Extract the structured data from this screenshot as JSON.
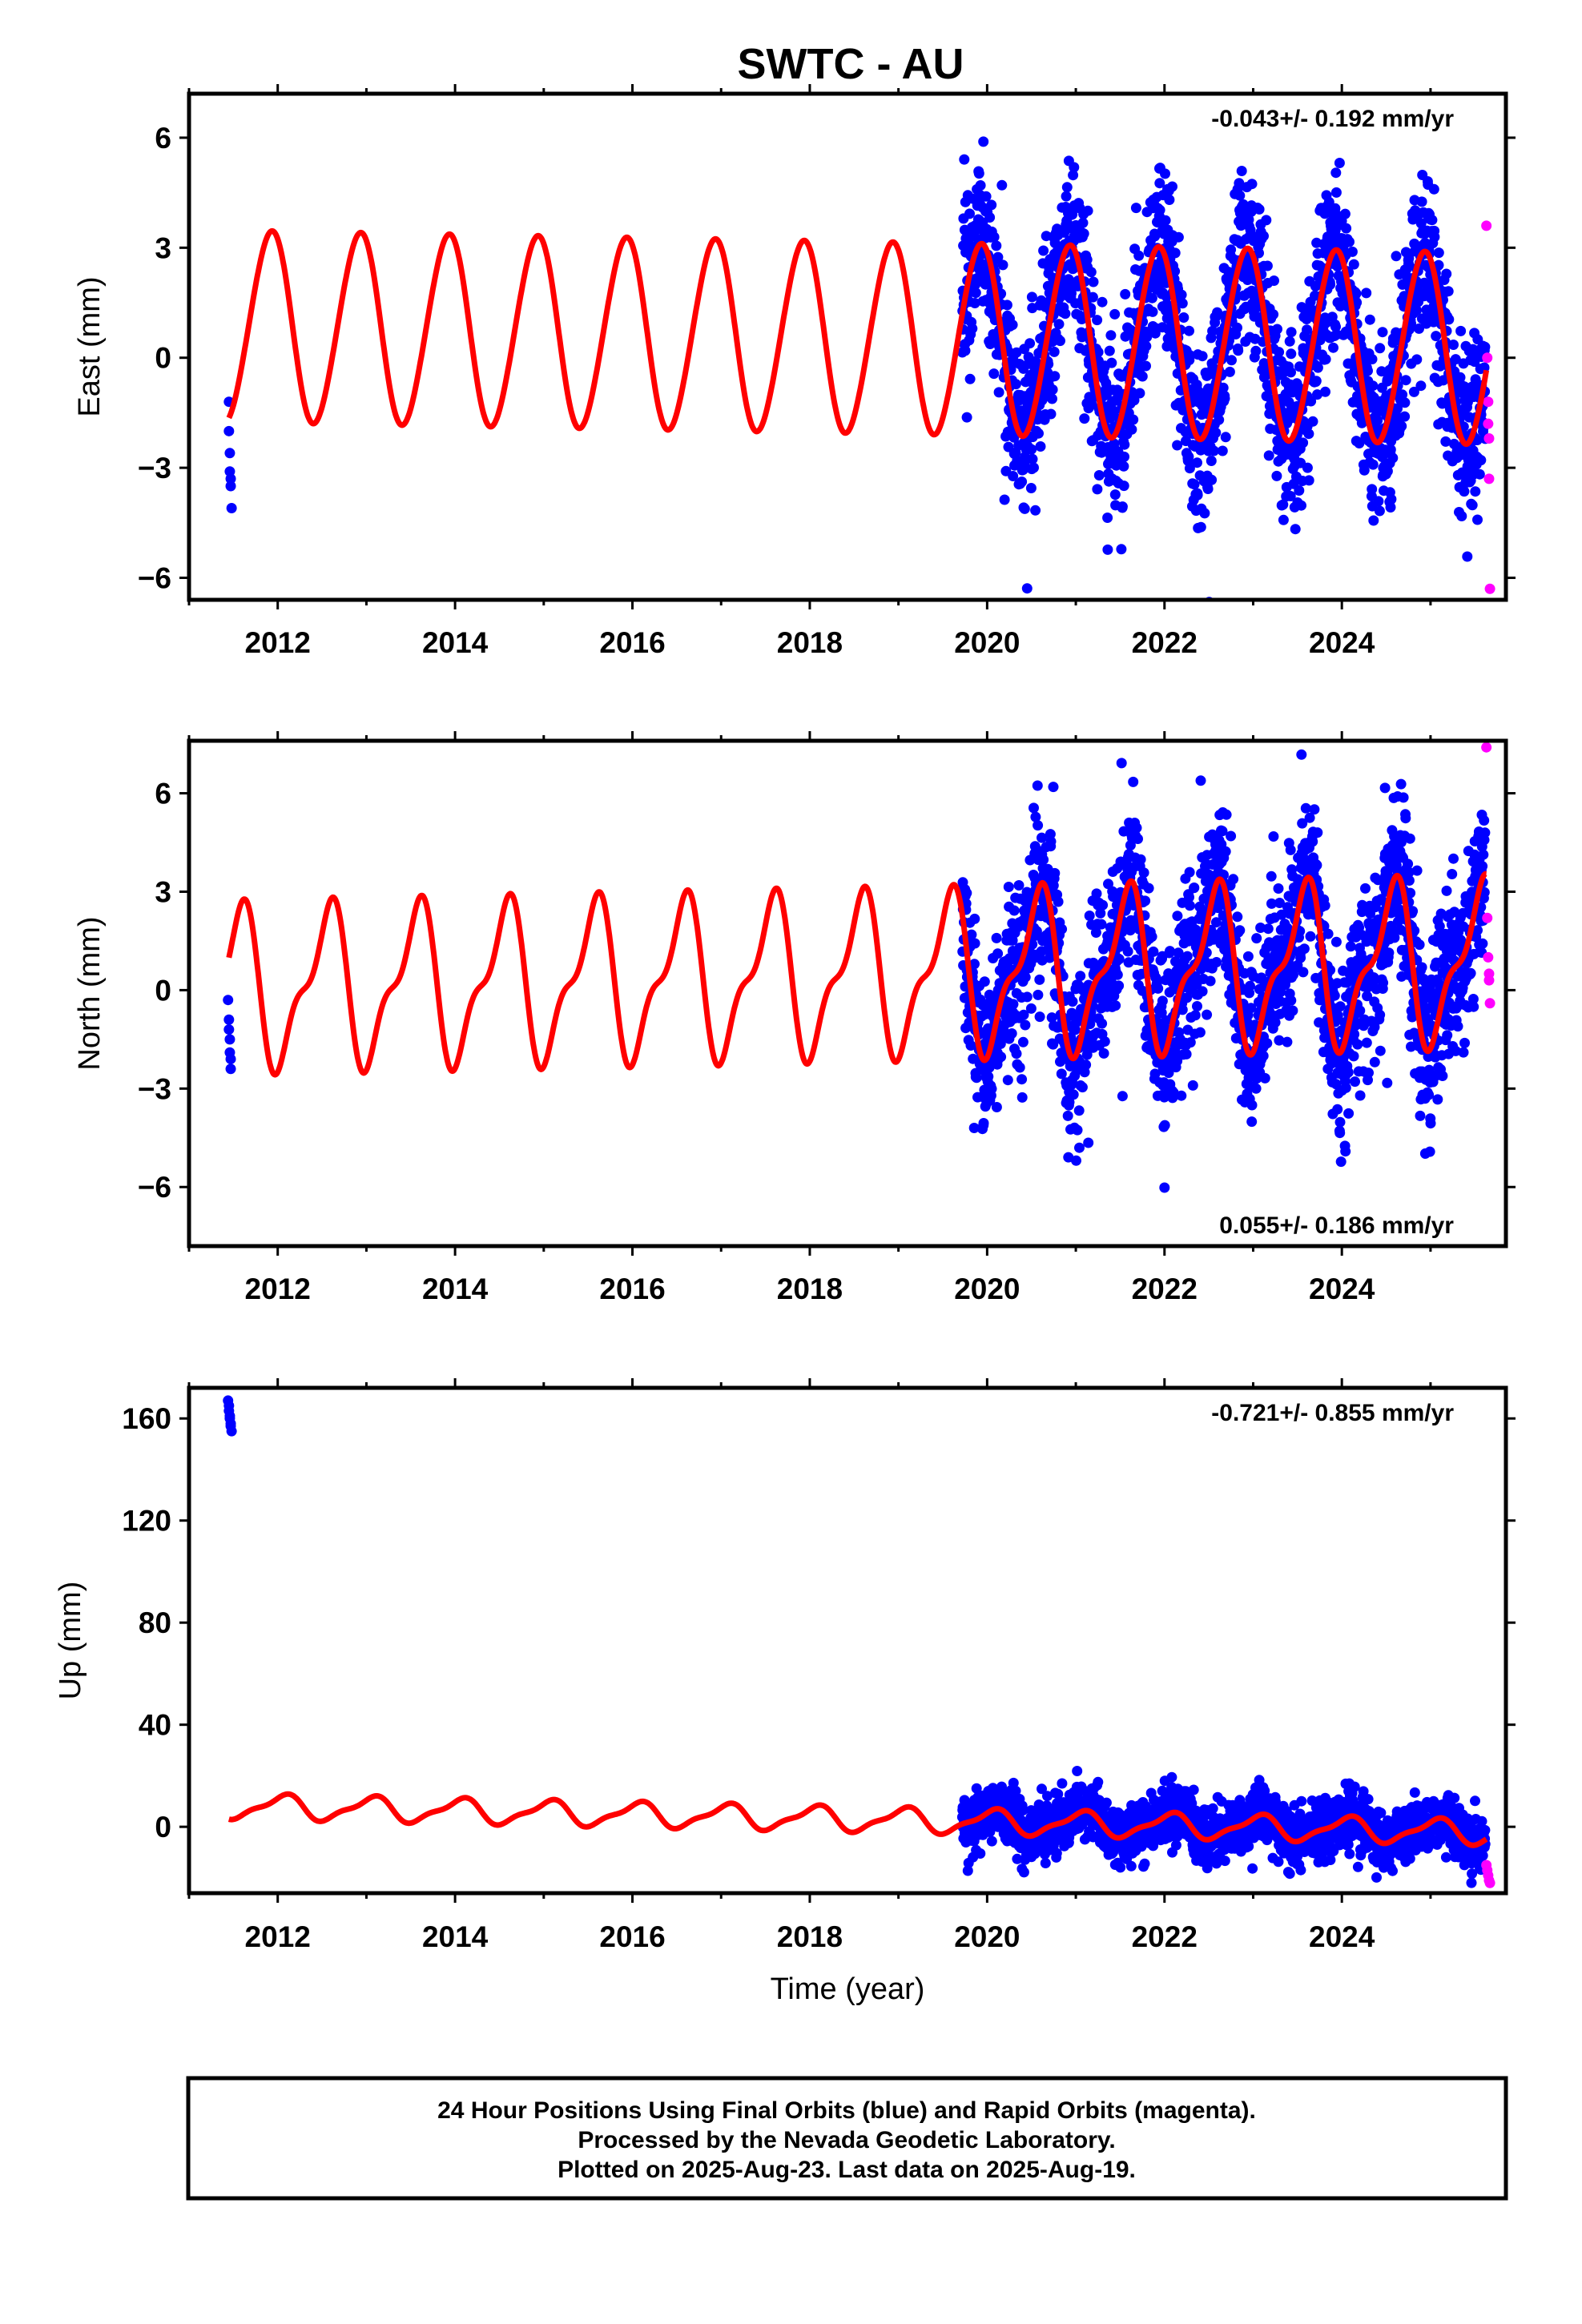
{
  "title": "SWTC - AU",
  "colors": {
    "final": "#0000ff",
    "rapid": "#ff00ff",
    "model": "#ff0000",
    "frame": "#000000"
  },
  "footer": {
    "line1": "24 Hour Positions Using Final Orbits (blue) and Rapid Orbits (magenta).",
    "line2": "Processed by the Nevada Geodetic Laboratory.",
    "line3": "Plotted on 2025-Aug-23. Last data on 2025-Aug-19."
  },
  "chart_data": [
    {
      "type": "scatter",
      "ylabel": "East (mm)",
      "xlabel": "",
      "rate_text": "-0.043+/- 0.192 mm/yr",
      "rate_position": "top-right",
      "xlim": [
        2011.0,
        2025.85
      ],
      "ylim": [
        -6.6,
        7.2
      ],
      "xticks": [
        2012,
        2014,
        2016,
        2018,
        2020,
        2022,
        2024
      ],
      "yticks": [
        -6,
        -3,
        0,
        3,
        6
      ],
      "model": {
        "offset": 0.85,
        "amp_annual": 2.6,
        "amp_semiannual": 0.15,
        "phase_peak": 0.92,
        "trend": -0.043,
        "label": ""
      },
      "early_cluster": {
        "x": [
          2011.45,
          2011.45,
          2011.46,
          2011.46,
          2011.47,
          2011.47,
          2011.48
        ],
        "y": [
          -1.2,
          -2.0,
          -2.6,
          -3.1,
          -3.5,
          -3.3,
          -4.1
        ]
      },
      "final_orbit_span": [
        2019.72,
        2025.62
      ],
      "noise_sd": 1.15,
      "rapid_points": {
        "x": [
          2025.63,
          2025.64,
          2025.65,
          2025.65,
          2025.66,
          2025.66,
          2025.67
        ],
        "y": [
          3.6,
          0.0,
          -1.2,
          -1.8,
          -2.2,
          -3.3,
          -6.3
        ]
      }
    },
    {
      "type": "scatter",
      "ylabel": "North (mm)",
      "xlabel": "",
      "rate_text": "0.055+/- 0.186 mm/yr",
      "rate_position": "bottom-right",
      "xlim": [
        2011.0,
        2025.85
      ],
      "ylim": [
        -7.8,
        7.6
      ],
      "xticks": [
        2012,
        2014,
        2016,
        2018,
        2020,
        2022,
        2024
      ],
      "yticks": [
        -6,
        -3,
        0,
        3,
        6
      ],
      "model": {
        "offset": 0.05,
        "amp_annual": 2.2,
        "amp_semiannual": 0.9,
        "phase_peak": 0.55,
        "trend": 0.055,
        "label": ""
      },
      "early_cluster": {
        "x": [
          2011.44,
          2011.45,
          2011.45,
          2011.46,
          2011.46,
          2011.47,
          2011.47
        ],
        "y": [
          -0.3,
          -0.9,
          -1.2,
          -1.5,
          -1.9,
          -2.1,
          -2.4
        ]
      },
      "final_orbit_span": [
        2019.72,
        2025.62
      ],
      "noise_sd": 1.3,
      "rapid_points": {
        "x": [
          2025.63,
          2025.64,
          2025.65,
          2025.66,
          2025.66,
          2025.67
        ],
        "y": [
          7.4,
          2.2,
          1.0,
          0.5,
          0.3,
          -0.4
        ]
      }
    },
    {
      "type": "scatter",
      "ylabel": "Up (mm)",
      "xlabel": "Time (year)",
      "rate_text": "-0.721+/- 0.855 mm/yr",
      "rate_position": "top-right",
      "xlim": [
        2011.0,
        2025.85
      ],
      "ylim": [
        -26,
        172
      ],
      "xticks": [
        2012,
        2014,
        2016,
        2018,
        2020,
        2022,
        2024
      ],
      "yticks": [
        0,
        40,
        80,
        120,
        160
      ],
      "model": {
        "offset": 8.0,
        "amp_annual": 4.5,
        "amp_semiannual": 1.5,
        "phase_peak": 0.05,
        "trend": -0.721,
        "label": ""
      },
      "early_cluster": {
        "x": [
          2011.44,
          2011.45,
          2011.45,
          2011.46,
          2011.46,
          2011.47,
          2011.47,
          2011.48
        ],
        "y": [
          167,
          165,
          163,
          161,
          160,
          158,
          157,
          155
        ]
      },
      "final_orbit_span": [
        2019.72,
        2025.62
      ],
      "noise_sd": 5.5,
      "rapid_points": {
        "x": [
          2025.63,
          2025.64,
          2025.65,
          2025.66,
          2025.67
        ],
        "y": [
          -15,
          -17,
          -19,
          -21,
          -22
        ]
      }
    }
  ]
}
